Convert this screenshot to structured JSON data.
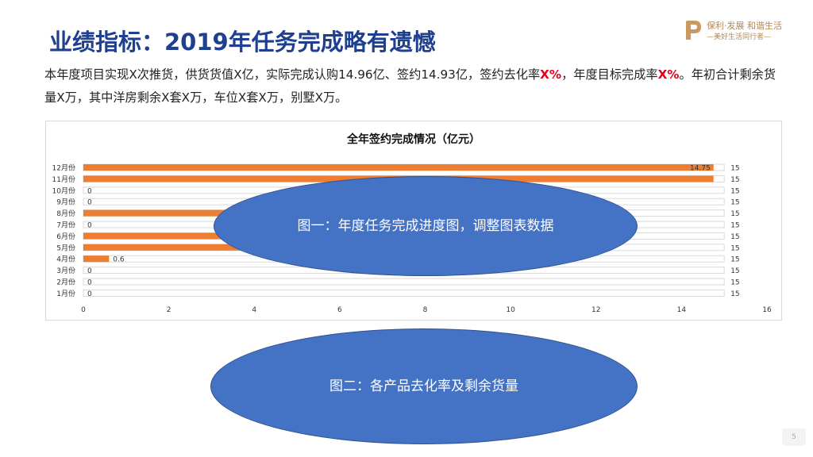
{
  "title": "业绩指标：2019年任务完成略有遗憾",
  "logo": {
    "line1": "保利·发展 和谐生活",
    "line2": "—美好生活同行者—"
  },
  "paragraph": {
    "p1": "本年度项目实现X次推货，供货货值X亿，实际完成认购14.96亿、签约14.93亿，签约去化率",
    "red1": "X%",
    "p2": "，年度目标完成率",
    "red2": "X%",
    "p3": "。年初合计剩余货量X万，其中洋房剩余X套X万，车位X套X万，别墅X万。"
  },
  "chart_data": {
    "type": "bar",
    "orientation": "horizontal",
    "title": "全年签约完成情况（亿元）",
    "categories": [
      "1月份",
      "2月份",
      "3月份",
      "4月份",
      "5月份",
      "6月份",
      "7月份",
      "8月份",
      "9月份",
      "10月份",
      "11月份",
      "12月份"
    ],
    "series": [
      {
        "values": [
          0,
          0,
          0,
          0.6,
          8,
          8,
          0,
          8,
          0,
          0,
          14.75,
          14.75
        ],
        "labels": [
          "0",
          "0",
          "0",
          "0.6",
          "",
          "",
          "0",
          "",
          "0",
          "0",
          "",
          "14.75"
        ]
      },
      {
        "values": [
          15,
          15,
          15,
          15,
          15,
          15,
          15,
          15,
          15,
          15,
          15,
          15
        ],
        "labels": [
          "15",
          "15",
          "15",
          "15",
          "15",
          "15",
          "15",
          "15",
          "15",
          "15",
          "15",
          "15"
        ]
      }
    ],
    "xlim": [
      0,
      16
    ],
    "xticks": [
      "0",
      "2",
      "4",
      "6",
      "8",
      "10",
      "12",
      "14",
      "16"
    ],
    "colors": {
      "actual": "#ed7d31",
      "target_outline": "#d9d9d9"
    }
  },
  "callouts": {
    "one": "图一：年度任务完成进度图，调整图表数据",
    "two": "图二：各产品去化率及剩余货量"
  },
  "page_number": "5"
}
